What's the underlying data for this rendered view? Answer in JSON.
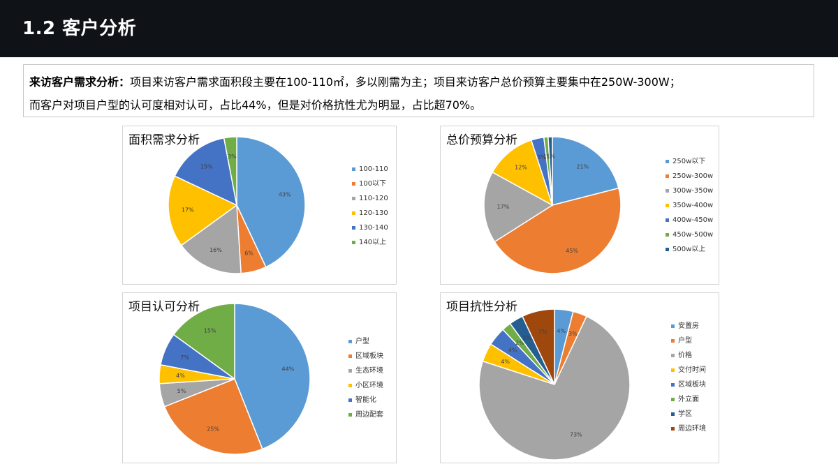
{
  "header": {
    "title": "1.2 客户分析"
  },
  "summary": {
    "label": "来访客户需求分析：",
    "line1": "项目来访客户需求面积段主要在100-110㎡，多以刚需为主；项目来访客户总价预算主要集中在250W-300W；",
    "line2": "而客户对项目户型的认可度相对认可，占比44%，但是对价格抗性尤为明显，占比超70%。"
  },
  "chart_data": [
    {
      "id": "area",
      "type": "pie",
      "title": "面积需求分析",
      "categories": [
        "100-110",
        "100以下",
        "110-120",
        "120-130",
        "130-140",
        "140以上"
      ],
      "values": [
        43,
        6,
        16,
        17,
        15,
        3
      ],
      "labels": [
        "43%",
        "6%",
        "16%",
        "17%",
        "15%",
        "3%"
      ],
      "colors": [
        "#5b9bd5",
        "#ed7d31",
        "#a5a5a5",
        "#ffc000",
        "#4472c4",
        "#70ad47"
      ],
      "legend": "right"
    },
    {
      "id": "price",
      "type": "pie",
      "title": "总价预算分析",
      "categories": [
        "250w以下",
        "250w-300w",
        "300w-350w",
        "350w-400w",
        "400w-450w",
        "450w-500w",
        "500w以上"
      ],
      "values": [
        21,
        45,
        17,
        12,
        3,
        1,
        1
      ],
      "labels": [
        "21%",
        "45%",
        "17%",
        "12%",
        "3%",
        "1%",
        "1%"
      ],
      "colors": [
        "#5b9bd5",
        "#ed7d31",
        "#a5a5a5",
        "#ffc000",
        "#4472c4",
        "#70ad47",
        "#255e91"
      ],
      "legend": "right"
    },
    {
      "id": "approval",
      "type": "pie",
      "title": "项目认可分析",
      "categories": [
        "户型",
        "区域板块",
        "生态环境",
        "小区环境",
        "智能化",
        "周边配套"
      ],
      "values": [
        44,
        25,
        5,
        4,
        7,
        15
      ],
      "labels": [
        "44%",
        "25%",
        "5%",
        "4%",
        "7%",
        "15%"
      ],
      "colors": [
        "#5b9bd5",
        "#ed7d31",
        "#a5a5a5",
        "#ffc000",
        "#4472c4",
        "#70ad47"
      ],
      "legend": "right"
    },
    {
      "id": "resist",
      "type": "pie",
      "title": "项目抗性分析",
      "categories": [
        "安置房",
        "户型",
        "价格",
        "交付时间",
        "区域板块",
        "外立面",
        "学区",
        "周边环境"
      ],
      "values": [
        4,
        3,
        73,
        4,
        4,
        2,
        3,
        7
      ],
      "labels": [
        "4%",
        "3%",
        "73%",
        "4%",
        "4%",
        "2%",
        "3%",
        "7%"
      ],
      "colors": [
        "#5b9bd5",
        "#ed7d31",
        "#a5a5a5",
        "#ffc000",
        "#4472c4",
        "#70ad47",
        "#255e91",
        "#9e480e"
      ],
      "legend": "right"
    }
  ]
}
